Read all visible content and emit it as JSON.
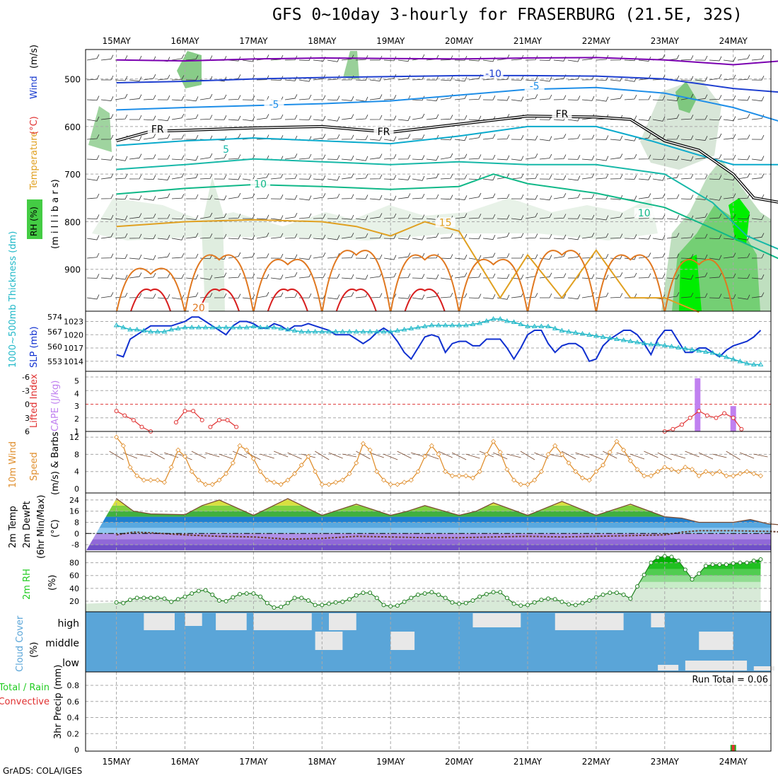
{
  "title": "GFS 0~10day 3-hourly for FRASERBURG (21.5E, 32S)",
  "credit": "GrADS: COLA/IGES",
  "colors": {
    "temp_cold": "#7a00b0",
    "temp_minus10": "#2040d0",
    "temp_minus5": "#1e8ee8",
    "temp_0": "#0aaacc",
    "temp_5": "#17b8a8",
    "temp_10": "#10b888",
    "temp_15": "#e0a020",
    "temp_20": "#e07820",
    "temp_25": "#d82020",
    "freezing": "#000000",
    "rh": "#22cc22",
    "slp": "#1030d0",
    "thickness": "#20b8c8",
    "cape": "#c080f0",
    "lifted_index": "#e03030",
    "wind": "#e09030",
    "cloud": "#5aa5d8",
    "cloud_free": "#e8e8e8"
  },
  "chart_data": [
    {
      "type": "heatmap",
      "panel": "upper-air",
      "ylabel_parts": [
        "RH (%)",
        "Temperature",
        "(°C)",
        "Wind",
        "(m/s)",
        "(m i l l i b a r s)"
      ],
      "y_ticks": [
        "500",
        "600",
        "700",
        "800",
        "900"
      ],
      "ylim": [
        1000,
        450
      ],
      "x_ticks": [
        "15MAY",
        "16MAY",
        "17MAY",
        "18MAY",
        "19MAY",
        "20MAY",
        "21MAY",
        "22MAY",
        "23MAY",
        "24MAY"
      ],
      "contour_labels": [
        {
          "text": "-10",
          "day": 5.5,
          "mb": 493
        },
        {
          "text": "-5",
          "day": 6.1,
          "mb": 519
        },
        {
          "text": "-5",
          "day": 2.3,
          "mb": 558
        },
        {
          "text": "FR",
          "day": 0.6,
          "mb": 610
        },
        {
          "text": "FR",
          "day": 3.9,
          "mb": 615
        },
        {
          "text": "FR",
          "day": 6.5,
          "mb": 578
        },
        {
          "text": "5",
          "day": 1.6,
          "mb": 652
        },
        {
          "text": "10",
          "day": 2.1,
          "mb": 725
        },
        {
          "text": "10",
          "day": 7.7,
          "mb": 786
        },
        {
          "text": "15",
          "day": 4.8,
          "mb": 806
        },
        {
          "text": "20",
          "day": 1.2,
          "mb": 985
        }
      ],
      "isotherms": [
        {
          "label": "-10",
          "color_key": "temp_minus10",
          "day": [
            0,
            1,
            2,
            3,
            4,
            5,
            6,
            7,
            8,
            9,
            9.7
          ],
          "mb": [
            508,
            505,
            500,
            497,
            495,
            493,
            493,
            494,
            500,
            520,
            528
          ]
        },
        {
          "label": "-5",
          "color_key": "temp_minus5",
          "day": [
            0,
            1,
            2,
            3,
            4,
            5,
            6,
            7,
            8,
            9,
            9.7
          ],
          "mb": [
            565,
            560,
            556,
            552,
            546,
            534,
            522,
            518,
            530,
            560,
            590
          ]
        },
        {
          "label": "0",
          "color_key": "temp_0",
          "day": [
            0,
            1,
            2,
            3,
            4,
            5,
            6,
            7,
            7.8,
            8.5,
            9,
            9.7
          ],
          "mb": [
            640,
            630,
            624,
            630,
            636,
            620,
            600,
            600,
            630,
            660,
            680,
            680
          ]
        },
        {
          "label": "5",
          "color_key": "temp_5",
          "day": [
            0,
            1,
            2,
            3,
            4,
            5,
            6,
            7,
            8,
            8.7,
            9.2,
            9.7
          ],
          "mb": [
            690,
            680,
            668,
            674,
            680,
            674,
            680,
            680,
            700,
            760,
            830,
            860
          ]
        },
        {
          "label": "10",
          "color_key": "temp_10",
          "day": [
            0,
            1,
            2,
            3,
            4,
            5,
            5.5,
            6,
            7,
            8,
            8.6,
            9.7
          ],
          "mb": [
            742,
            730,
            722,
            726,
            732,
            726,
            700,
            720,
            740,
            770,
            808,
            880
          ]
        },
        {
          "label": "15",
          "color_key": "temp_15",
          "day": [
            0,
            1,
            2,
            3,
            3.5,
            4,
            4.5,
            5,
            5.6,
            6,
            6.5,
            7,
            7.5,
            8,
            8.5
          ],
          "mb": [
            810,
            800,
            796,
            800,
            810,
            830,
            800,
            820,
            960,
            870,
            960,
            860,
            960,
            960,
            990
          ]
        }
      ],
      "freezing_level": {
        "day": [
          0,
          0.5,
          1,
          2,
          3,
          4,
          5,
          6,
          7,
          7.5,
          8,
          8.5,
          9,
          9.3,
          9.7
        ],
        "mb": [
          630,
          610,
          608,
          603,
          600,
          612,
          595,
          578,
          580,
          585,
          630,
          650,
          700,
          750,
          760
        ]
      }
    },
    {
      "type": "line",
      "panel": "slp-thickness",
      "ylabel_left": "1000~500mb Thickness (dm)",
      "ylabel_right": "SLP (mb)",
      "y_ticks_left": [
        "574",
        "567",
        "560",
        "553"
      ],
      "y_ticks_right": [
        "1023",
        "1020",
        "1017",
        "1014"
      ],
      "ylim_slp": [
        1013,
        1025
      ],
      "series": [
        {
          "name": "SLP (mb)",
          "color_key": "slp",
          "values": [
            1015.5,
            1015,
            1019,
            1020,
            1021,
            1022,
            1022,
            1022,
            1022,
            1022.5,
            1023,
            1024,
            1024,
            1023,
            1022,
            1021,
            1020,
            1022,
            1023,
            1023,
            1022.5,
            1021.5,
            1021.5,
            1022.5,
            1022,
            1021,
            1022,
            1022,
            1022.5,
            1022,
            1021.5,
            1021,
            1020,
            1020,
            1020,
            1019,
            1018,
            1019,
            1020.5,
            1021.5,
            1020.5,
            1018.5,
            1016,
            1014.5,
            1017,
            1019.5,
            1020,
            1019.5,
            1016,
            1018,
            1018.5,
            1018.5,
            1017.5,
            1017.5,
            1019,
            1019,
            1019,
            1017,
            1014.5,
            1017,
            1020,
            1021,
            1021,
            1018,
            1016,
            1017.5,
            1018,
            1018,
            1017,
            1014,
            1014.5,
            1017.5,
            1019,
            1020,
            1021,
            1021,
            1020,
            1018,
            1015.5,
            1019,
            1021,
            1021,
            1018.5,
            1016,
            1016,
            1017,
            1017,
            1016,
            1015,
            1016.5,
            1017.5,
            1018,
            1018.5,
            1019.5,
            1021
          ]
        },
        {
          "name": "Thickness (dm)",
          "color_key": "thickness",
          "values": [
            570,
            569,
            568,
            568,
            567.5,
            567,
            567,
            567,
            568,
            568.5,
            569,
            569,
            569,
            569,
            569,
            569,
            569,
            569,
            569,
            569,
            569.5,
            569,
            569,
            569,
            568.5,
            568,
            567.5,
            567,
            567,
            567,
            567,
            567,
            567,
            567,
            567,
            567,
            567,
            567,
            567,
            567,
            567,
            567.5,
            568,
            568.5,
            569,
            569.5,
            570,
            570,
            570,
            570,
            570,
            570,
            570.5,
            571,
            572,
            573,
            573,
            572,
            571.5,
            570.5,
            569.5,
            569.5,
            569.5,
            569.5,
            568.5,
            567.5,
            567,
            566.5,
            566,
            565.5,
            565,
            564.5,
            564,
            563.5,
            563,
            562.5,
            562,
            561.5,
            561,
            561,
            560.5,
            560,
            559.5,
            559,
            558.5,
            558,
            557.5,
            557,
            556,
            555,
            554,
            553,
            552,
            551.5,
            551.5
          ]
        }
      ]
    },
    {
      "type": "bar",
      "panel": "cape-li",
      "ylabel_left": "Lifted Index",
      "ylabel_right": "CAPE (J/kg)",
      "y_ticks_left": [
        "-6",
        "-3",
        "0",
        "3",
        "6"
      ],
      "y_ticks_right": [
        "5",
        "4",
        "3",
        "2",
        "1"
      ],
      "cape_bars": [
        {
          "day": 8.48,
          "value": 5.2
        },
        {
          "day": 9.0,
          "value": 3.0
        }
      ],
      "lifted_index": {
        "day": [
          0,
          0.12,
          0.25,
          0.37,
          0.5,
          null,
          0.87,
          1.0,
          1.12,
          1.25,
          null,
          1.37,
          1.5,
          1.62,
          1.75,
          null,
          8.0,
          8.12,
          8.25,
          8.37,
          8.5,
          8.62,
          8.75,
          8.87,
          9.0,
          9.12
        ],
        "value": [
          1.5,
          2.5,
          3.5,
          5,
          6,
          null,
          4,
          1.5,
          1.5,
          3.5,
          null,
          5,
          3.5,
          3.5,
          5,
          null,
          6,
          5.5,
          4.5,
          3,
          1.5,
          2.5,
          3,
          2,
          3,
          5.5
        ]
      }
    },
    {
      "type": "line",
      "panel": "wind",
      "ylabel": "10m Wind Speed (m/s) & Barbs",
      "y_ticks": [
        "12",
        "8",
        "4",
        "0"
      ],
      "ylim": [
        0,
        13
      ],
      "series": [
        {
          "name": "10m Wind Speed (m/s)",
          "color_key": "wind",
          "values": [
            12,
            10,
            5,
            3,
            2,
            2,
            2,
            1.5,
            5,
            9,
            7.5,
            4,
            2,
            1,
            1,
            2,
            3.5,
            6,
            10,
            9,
            7,
            4,
            2,
            1.5,
            1,
            2,
            3.5,
            5.5,
            7.5,
            4,
            1,
            1,
            1.5,
            2,
            3.5,
            6,
            10.5,
            9,
            4,
            2,
            1,
            1,
            1.5,
            2,
            4,
            7.5,
            10,
            8,
            4,
            3,
            3,
            3,
            2.5,
            4,
            8,
            11,
            8.5,
            4.5,
            2,
            1,
            1,
            2,
            4,
            8,
            10,
            8,
            6,
            4,
            2.5,
            2,
            4,
            5.5,
            8.5,
            11,
            9,
            6.5,
            4.5,
            3,
            3,
            4,
            5,
            4.5,
            4,
            5,
            4.5,
            3,
            4,
            3.5,
            4,
            3,
            3,
            3.5,
            4,
            3.5,
            3
          ]
        }
      ]
    },
    {
      "type": "area",
      "panel": "temperature",
      "ylabel_parts": [
        "2m Temp",
        "2m DewPt",
        "(6hr Min/Max)",
        "(°C)"
      ],
      "y_ticks": [
        "24",
        "16",
        "8",
        "0",
        "-8"
      ],
      "ylim": [
        -12,
        28
      ],
      "series": [
        {
          "name": "2m Temp",
          "day": [
            0,
            0.25,
            0.5,
            1,
            1.25,
            1.5,
            2,
            2.25,
            2.5,
            3,
            3.25,
            3.5,
            4,
            4.25,
            4.5,
            5,
            5.25,
            5.5,
            6,
            6.25,
            6.5,
            7,
            7.25,
            7.5,
            8,
            8.25,
            8.5,
            9,
            9.25,
            9.5,
            9.75
          ],
          "values": [
            25,
            16,
            14,
            13.5,
            20,
            24,
            13,
            19,
            25,
            13,
            17,
            21,
            13,
            16,
            20,
            13,
            16,
            22,
            13,
            18,
            23,
            13,
            17,
            21,
            12,
            11,
            8,
            8,
            10,
            7,
            6
          ]
        },
        {
          "name": "2m DewPt",
          "day": [
            0,
            0.25,
            0.5,
            1,
            1.5,
            2,
            2.5,
            3,
            3.5,
            4,
            4.5,
            5,
            5.5,
            6,
            6.5,
            7,
            7.5,
            8,
            8.25,
            8.5,
            9,
            9.5,
            9.75
          ],
          "values": [
            -1,
            1,
            0.5,
            -1,
            -2,
            -2.5,
            -4,
            -3.5,
            -2,
            -2.5,
            -3,
            -3,
            -2.5,
            -2,
            -2.5,
            -2,
            -1.5,
            -1,
            1,
            2,
            2,
            1.5,
            1
          ]
        }
      ]
    },
    {
      "type": "line",
      "panel": "rh",
      "ylabel": "2m RH (%)",
      "y_ticks": [
        "80",
        "60",
        "40",
        "20"
      ],
      "ylim": [
        10,
        95
      ],
      "series": [
        {
          "name": "2m RH",
          "values": [
            18,
            17,
            22,
            25,
            25,
            25,
            25,
            24,
            19,
            23,
            27,
            32,
            36,
            37,
            30,
            21,
            20,
            26,
            31,
            32,
            32,
            27,
            17,
            10,
            11,
            17,
            25,
            25,
            21,
            14,
            14,
            16,
            18,
            19,
            23,
            29,
            33,
            33,
            25,
            14,
            12,
            13,
            19,
            25,
            30,
            32,
            34,
            30,
            25,
            18,
            16,
            17,
            21,
            27,
            31,
            34,
            34,
            25,
            16,
            13,
            14,
            18,
            22,
            24,
            23,
            19,
            15,
            14,
            17,
            21,
            26,
            30,
            33,
            33,
            30,
            24,
            43,
            61,
            80,
            88,
            90,
            89,
            83,
            69,
            54,
            63,
            75,
            77,
            77,
            77,
            79,
            80,
            80,
            83,
            85
          ]
        }
      ]
    },
    {
      "type": "heatmap",
      "panel": "cloud",
      "ylabel": "Cloud Cover (%)",
      "y_ticks": [
        "high",
        "middle",
        "low"
      ]
    },
    {
      "type": "bar",
      "panel": "precip",
      "ylabel_parts": [
        "Total / Rain",
        "Convective",
        "3hr Precip (mm)"
      ],
      "y_ticks": [
        "0.8",
        "0.6",
        "0.4",
        "0.2",
        "0"
      ],
      "ylim": [
        0,
        0.95
      ],
      "run_total": "Run Total = 0.06",
      "bars": [
        {
          "day": 9.0,
          "value": 0.06
        }
      ]
    }
  ]
}
